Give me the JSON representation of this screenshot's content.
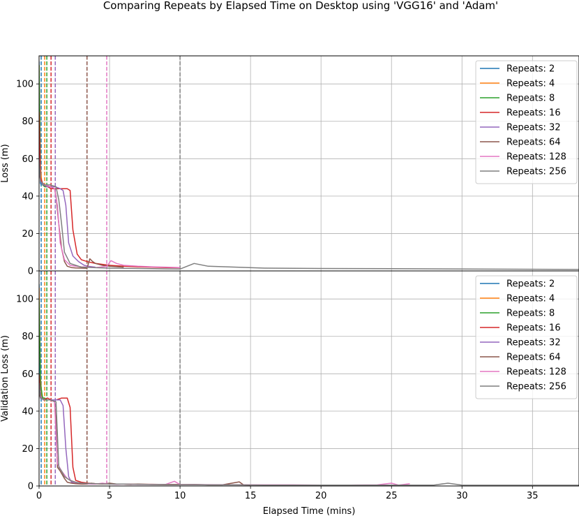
{
  "chart_data": {
    "type": "line",
    "title": "Comparing Repeats by Elapsed Time on Desktop using 'VGG16' and 'Adam'",
    "xlabel": "Elapsed Time (mins)",
    "xlim": [
      0,
      38.3
    ],
    "xticks": [
      0,
      5,
      10,
      15,
      20,
      25,
      30,
      35
    ],
    "grid": true,
    "legend_position": "upper right",
    "series_colors": {
      "Repeats: 2": "#1f77b4",
      "Repeats: 4": "#ff7f0e",
      "Repeats: 8": "#2ca02c",
      "Repeats: 16": "#d62728",
      "Repeats: 32": "#9467bd",
      "Repeats: 64": "#8c564b",
      "Repeats: 128": "#e377c2",
      "Repeats: 256": "#7f7f7f"
    },
    "panels": [
      {
        "ylabel": "Loss (m)",
        "ylim": [
          0,
          115
        ],
        "yticks": [
          0,
          20,
          40,
          60,
          80,
          100
        ],
        "vlines": [
          {
            "name": "Repeats: 2",
            "x": 0.15
          },
          {
            "name": "Repeats: 4",
            "x": 0.4
          },
          {
            "name": "Repeats: 8",
            "x": 0.55
          },
          {
            "name": "Repeats: 16",
            "x": 0.85
          },
          {
            "name": "Repeats: 32",
            "x": 1.15
          },
          {
            "name": "Repeats: 64",
            "x": 3.4
          },
          {
            "name": "Repeats: 128",
            "x": 4.8
          },
          {
            "name": "Repeats: 256",
            "x": 10.0
          }
        ],
        "series": [
          {
            "name": "Repeats: 2",
            "x": [
              0,
              0.05,
              0.1,
              0.15
            ],
            "y": [
              112,
              60,
              47,
              46
            ]
          },
          {
            "name": "Repeats: 4",
            "x": [
              0,
              0.1,
              0.2,
              0.3,
              0.4
            ],
            "y": [
              110,
              55,
              47,
              46,
              45
            ]
          },
          {
            "name": "Repeats: 8",
            "x": [
              0,
              0.1,
              0.25,
              0.4,
              0.55
            ],
            "y": [
              110,
              50,
              46,
              45,
              45
            ]
          },
          {
            "name": "Repeats: 16",
            "x": [
              0,
              0.1,
              0.3,
              0.6,
              0.85,
              1.2,
              1.6,
              2.0,
              2.2,
              2.4,
              2.7,
              3.0,
              3.4,
              4,
              5,
              6,
              7,
              8,
              9,
              10
            ],
            "y": [
              85,
              50,
              46,
              45,
              44,
              44,
              44,
              44,
              43,
              22,
              9,
              6,
              5,
              4,
              3,
              2.5,
              2.2,
              2,
              1.8,
              1.7
            ]
          },
          {
            "name": "Repeats: 32",
            "x": [
              0,
              0.1,
              0.3,
              0.6,
              1.15,
              1.5,
              1.7,
              1.9,
              2.1,
              2.4,
              2.8,
              3.2,
              3.5,
              4
            ],
            "y": [
              60,
              48,
              46,
              45,
              45,
              44,
              43,
              35,
              15,
              8,
              5,
              3,
              2.5,
              2
            ]
          },
          {
            "name": "Repeats: 64",
            "x": [
              0,
              0.1,
              0.4,
              0.8,
              1.1,
              1.2,
              1.4,
              1.6,
              1.8,
              2.0,
              2.3,
              2.6,
              3.0,
              3.4,
              3.6,
              3.8,
              4.0,
              4.5,
              5,
              6
            ],
            "y": [
              55,
              48,
              46,
              45,
              44,
              40,
              25,
              12,
              5,
              2.5,
              1.8,
              1.6,
              1.5,
              1.4,
              6.5,
              5,
              4,
              3,
              2.5,
              2
            ]
          },
          {
            "name": "Repeats: 128",
            "x": [
              0,
              0.1,
              0.4,
              0.8,
              1.1,
              1.3,
              1.5,
              1.8,
              2.2,
              2.6,
              3.0,
              3.5,
              4.0,
              4.5,
              4.8,
              5.1,
              5.5,
              6,
              7,
              8,
              9,
              10
            ],
            "y": [
              60,
              48,
              46,
              45,
              44,
              35,
              15,
              6,
              3,
              2.5,
              2.2,
              2,
              1.8,
              2.2,
              2.5,
              5.5,
              4,
              3,
              2.5,
              2.2,
              2,
              1.8
            ]
          },
          {
            "name": "Repeats: 256",
            "x": [
              0,
              0.1,
              0.4,
              0.8,
              1.2,
              1.4,
              1.6,
              1.8,
              2.2,
              2.6,
              3,
              4,
              5,
              6,
              7,
              8,
              9,
              10,
              11,
              12,
              14,
              16,
              20,
              25,
              30,
              35,
              38.3
            ],
            "y": [
              60,
              48,
              46,
              46,
              45,
              38,
              25,
              10,
              4,
              3,
              2,
              1.7,
              1.5,
              1.4,
              1.3,
              1.2,
              1.1,
              1.0,
              4,
              2.5,
              2,
              1.5,
              1.3,
              1.2,
              1.0,
              0.9,
              0.8
            ]
          }
        ]
      },
      {
        "ylabel": "Validation Loss (m)",
        "ylim": [
          0,
          115
        ],
        "yticks": [
          0,
          20,
          40,
          60,
          80,
          100
        ],
        "vlines": [
          {
            "name": "Repeats: 2",
            "x": 0.15
          },
          {
            "name": "Repeats: 4",
            "x": 0.4
          },
          {
            "name": "Repeats: 8",
            "x": 0.55
          },
          {
            "name": "Repeats: 16",
            "x": 0.85
          },
          {
            "name": "Repeats: 32",
            "x": 1.15
          },
          {
            "name": "Repeats: 64",
            "x": 3.4
          },
          {
            "name": "Repeats: 128",
            "x": 4.8
          },
          {
            "name": "Repeats: 256",
            "x": 10.0
          }
        ],
        "series": [
          {
            "name": "Repeats: 2",
            "x": [
              0,
              0.05,
              0.1,
              0.15
            ],
            "y": [
              108,
              60,
              48,
              47
            ]
          },
          {
            "name": "Repeats: 4",
            "x": [
              0,
              0.1,
              0.2,
              0.3,
              0.4
            ],
            "y": [
              106,
              58,
              48,
              47,
              47
            ]
          },
          {
            "name": "Repeats: 8",
            "x": [
              0,
              0.1,
              0.25,
              0.4,
              0.55
            ],
            "y": [
              100,
              55,
              47,
              47,
              46
            ]
          },
          {
            "name": "Repeats: 16",
            "x": [
              0,
              0.1,
              0.3,
              0.6,
              0.85,
              1.2,
              1.6,
              2.0,
              2.2,
              2.4,
              2.6,
              3.0,
              3.5,
              4,
              5,
              6,
              7,
              8,
              9,
              10
            ],
            "y": [
              60,
              48,
              46,
              47,
              46,
              46,
              47,
              47,
              42,
              10,
              3,
              2,
              1.5,
              1.2,
              1,
              1,
              0.9,
              0.9,
              0.8,
              0.8
            ]
          },
          {
            "name": "Repeats: 32",
            "x": [
              0,
              0.1,
              0.3,
              0.6,
              1.15,
              1.5,
              1.7,
              1.9,
              2.1,
              2.3,
              2.8,
              3.2,
              4
            ],
            "y": [
              55,
              48,
              46,
              46,
              46,
              46,
              43,
              20,
              5,
              2,
              1.5,
              1.2,
              1
            ]
          },
          {
            "name": "Repeats: 64",
            "x": [
              0,
              0.1,
              0.4,
              0.8,
              1.1,
              1.2,
              1.3,
              1.5,
              1.8,
              2.0,
              2.3,
              2.6,
              3.0,
              3.4,
              3.7,
              4,
              4.5,
              5,
              5.5,
              6,
              6.5,
              7,
              8,
              9,
              10,
              11,
              12,
              13,
              14.2,
              14.5,
              15
            ],
            "y": [
              50,
              47,
              46,
              46,
              45,
              35,
              10,
              8,
              4,
              2,
              1.5,
              1.2,
              1,
              1,
              1.5,
              1.2,
              1,
              1.5,
              1,
              1,
              0.8,
              1,
              0.8,
              0.7,
              0.7,
              0.8,
              0.6,
              0.6,
              2.2,
              0.6,
              0.5
            ]
          },
          {
            "name": "Repeats: 128",
            "x": [
              0,
              0.1,
              0.4,
              0.8,
              1.1,
              1.3,
              1.6,
              2.0,
              2.5,
              3,
              3.5,
              4,
              4.5,
              4.8,
              5,
              5.5,
              6,
              7,
              8,
              9,
              9.6,
              10,
              12,
              15,
              18,
              20,
              22,
              24,
              25,
              25.5,
              26.3
            ],
            "y": [
              55,
              47,
              46,
              46,
              45,
              12,
              8,
              4,
              2,
              1.5,
              1.2,
              1,
              1.5,
              1.2,
              1,
              0.9,
              1,
              0.8,
              0.8,
              0.9,
              2.5,
              0.8,
              0.7,
              0.6,
              0.6,
              0.5,
              0.5,
              0.6,
              1.5,
              0.5,
              1.2
            ]
          },
          {
            "name": "Repeats: 256",
            "x": [
              0,
              0.1,
              0.4,
              0.8,
              1.2,
              1.4,
              1.6,
              1.8,
              2.2,
              2.6,
              3,
              4,
              5,
              6,
              7,
              8,
              9,
              10,
              11,
              12,
              14,
              16,
              20,
              25,
              28,
              29,
              30,
              32,
              35,
              38.3
            ],
            "y": [
              55,
              47,
              46,
              46,
              45,
              10,
              8,
              5,
              3,
              2,
              1.5,
              1.2,
              1,
              1,
              0.9,
              0.8,
              0.8,
              0.7,
              0.7,
              0.6,
              0.6,
              0.5,
              0.5,
              0.5,
              0.5,
              1.5,
              0.5,
              0.4,
              0.4,
              0.4
            ]
          }
        ]
      }
    ]
  }
}
